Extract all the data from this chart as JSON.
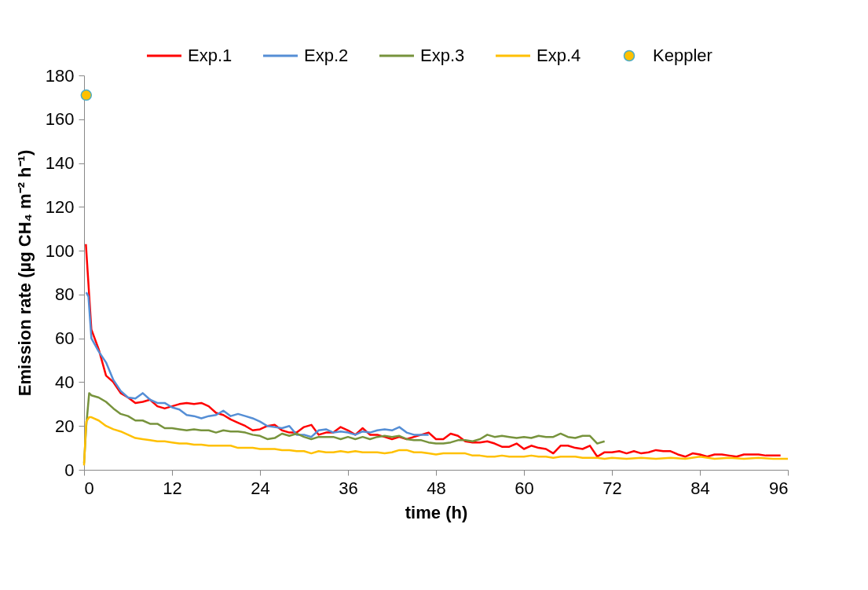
{
  "chart_data": {
    "type": "line",
    "xlabel": "time (h)",
    "ylabel": "Emission rate (µg CH₄ m⁻² h⁻¹)",
    "xlim": [
      0,
      96
    ],
    "xticks": [
      0,
      12,
      24,
      36,
      48,
      60,
      72,
      84,
      96
    ],
    "ylim": [
      0,
      180
    ],
    "yticks": [
      0,
      20,
      40,
      60,
      80,
      100,
      120,
      140,
      160,
      180
    ],
    "grid": false,
    "legend": "top",
    "marker": "none",
    "line_style": "solid",
    "series": [
      {
        "name": "Exp.1",
        "color": "#ff0000",
        "x": [
          0.25,
          0.5,
          1,
          2,
          3,
          4,
          5,
          6,
          7,
          8,
          9,
          10,
          11,
          12,
          13,
          14,
          15,
          16,
          17,
          18,
          19,
          20,
          21,
          22,
          23,
          24,
          25,
          26,
          27,
          28,
          29,
          30,
          31,
          32,
          33,
          34,
          35,
          36,
          37,
          38,
          39,
          40,
          41,
          42,
          43,
          44,
          45,
          46,
          47,
          48,
          49,
          50,
          51,
          52,
          53,
          54,
          55,
          56,
          57,
          58,
          59,
          60,
          61,
          62,
          63,
          64,
          65,
          66,
          67,
          68,
          69,
          70,
          71,
          72,
          73,
          74,
          75,
          76,
          77,
          78,
          79,
          80,
          81,
          82,
          83,
          84,
          85,
          86,
          87,
          88,
          89,
          90,
          91,
          92,
          93,
          94,
          95
        ],
        "values": [
          103,
          90,
          64,
          55,
          43,
          40,
          35,
          33,
          30.5,
          31,
          32,
          29,
          28,
          29,
          30,
          30.5,
          30,
          30.5,
          29,
          26,
          25,
          23,
          21.5,
          20,
          18,
          18.5,
          20,
          20.5,
          18,
          17,
          17,
          19.5,
          20.5,
          16,
          17,
          17,
          19.5,
          18,
          16,
          19,
          16,
          16,
          15,
          14,
          15,
          14,
          15,
          16,
          17,
          14,
          14,
          16.5,
          15.5,
          13,
          12.5,
          12.5,
          13,
          12,
          10.5,
          10.5,
          12,
          9.5,
          11,
          10,
          9.5,
          7.5,
          11,
          11,
          10,
          9.5,
          11,
          6,
          8,
          8,
          8.5,
          7.5,
          8.5,
          7.5,
          8,
          9,
          8.5,
          8.5,
          7,
          6,
          7.5,
          7,
          6,
          7,
          7,
          6.5,
          6,
          7,
          7,
          7,
          6.5,
          6.5,
          6.5
        ]
      },
      {
        "name": "Exp.2",
        "color": "#558ed5",
        "x": [
          0.3,
          0.6,
          1,
          2,
          3,
          4,
          5,
          6,
          7,
          8,
          9,
          10,
          11,
          12,
          13,
          14,
          15,
          16,
          17,
          18,
          19,
          20,
          21,
          22,
          23,
          24,
          25,
          26,
          27,
          28,
          29,
          30,
          31,
          32,
          33,
          34,
          35,
          36,
          37,
          38,
          39,
          40,
          41,
          42,
          43,
          44,
          45,
          46,
          47
        ],
        "values": [
          81,
          79,
          60,
          54,
          49,
          41,
          36,
          33,
          32.5,
          35,
          32,
          30.5,
          30.5,
          28.5,
          27.5,
          25,
          24.5,
          23.5,
          24.5,
          25,
          27,
          24.5,
          25.5,
          24.5,
          23.5,
          22,
          20,
          19.5,
          19,
          20,
          16,
          16,
          15,
          18,
          18.5,
          17,
          17.5,
          17,
          16,
          17.5,
          17,
          18,
          18.5,
          18,
          19.5,
          17,
          16,
          16,
          16
        ]
      },
      {
        "name": "Exp.3",
        "color": "#77933c",
        "x": [
          0,
          0.3,
          0.7,
          1,
          2,
          3,
          4,
          5,
          6,
          7,
          8,
          9,
          10,
          11,
          12,
          13,
          14,
          15,
          16,
          17,
          18,
          19,
          20,
          21,
          22,
          23,
          24,
          25,
          26,
          27,
          28,
          29,
          30,
          31,
          32,
          33,
          34,
          35,
          36,
          37,
          38,
          39,
          40,
          41,
          42,
          43,
          44,
          45,
          46,
          47,
          48,
          49,
          50,
          51,
          52,
          53,
          54,
          55,
          56,
          57,
          58,
          59,
          60,
          61,
          62,
          63,
          64,
          65,
          66,
          67,
          68,
          69,
          70,
          71
        ],
        "values": [
          3,
          20,
          35,
          34,
          33,
          31,
          28,
          25.5,
          24.5,
          22.5,
          22.5,
          21,
          21,
          19,
          19,
          18.5,
          18,
          18.5,
          18,
          18,
          17,
          18,
          17.5,
          17.5,
          17,
          16,
          15.5,
          14,
          14.5,
          16.5,
          15.5,
          16.5,
          15,
          14,
          15,
          15,
          15,
          14,
          15,
          14,
          15,
          14,
          15,
          15.5,
          15,
          15.5,
          14,
          13.5,
          13.5,
          12.5,
          12,
          12,
          12.5,
          13.5,
          13.5,
          13,
          14,
          16,
          15,
          15.5,
          15,
          14.5,
          15,
          14.5,
          15.5,
          15,
          15,
          16.5,
          15,
          14.5,
          15.5,
          15.5,
          12,
          13
        ]
      },
      {
        "name": "Exp.4",
        "color": "#ffc000",
        "x": [
          0,
          0.3,
          0.7,
          1,
          2,
          3,
          4,
          5,
          6,
          7,
          8,
          9,
          10,
          11,
          12,
          13,
          14,
          15,
          16,
          17,
          18,
          19,
          20,
          21,
          22,
          23,
          24,
          25,
          26,
          27,
          28,
          29,
          30,
          31,
          32,
          33,
          34,
          35,
          36,
          37,
          38,
          39,
          40,
          41,
          42,
          43,
          44,
          45,
          46,
          47,
          48,
          49,
          50,
          51,
          52,
          53,
          54,
          55,
          56,
          57,
          58,
          59,
          60,
          61,
          62,
          63,
          64,
          65,
          66,
          67,
          68,
          69,
          70,
          71,
          72,
          74,
          76,
          78,
          80,
          82,
          84,
          86,
          88,
          90,
          92,
          94,
          96
        ],
        "values": [
          2,
          22,
          24,
          24,
          22.5,
          20,
          18.5,
          17.5,
          16,
          14.5,
          14,
          13.5,
          13,
          13,
          12.5,
          12,
          12,
          11.5,
          11.5,
          11,
          11,
          11,
          11,
          10,
          10,
          10,
          9.5,
          9.5,
          9.5,
          9,
          9,
          8.5,
          8.5,
          7.5,
          8.5,
          8,
          8,
          8.5,
          8,
          8.5,
          8,
          8,
          8,
          7.5,
          8,
          9,
          9,
          8,
          8,
          7.5,
          7,
          7.5,
          7.5,
          7.5,
          7.5,
          6.5,
          6.5,
          6,
          6,
          6.5,
          6,
          6,
          6,
          6.5,
          6,
          6,
          5.5,
          6,
          6,
          6,
          5.5,
          5.5,
          5.5,
          5,
          5.5,
          5,
          5.5,
          5,
          5.5,
          5,
          6,
          5,
          5.5,
          5,
          5.5,
          5,
          5
        ]
      },
      {
        "name": "Keppler",
        "type": "scatter",
        "marker": "circle",
        "color": "#ffc000",
        "x": [
          0.3
        ],
        "values": [
          171
        ]
      }
    ]
  }
}
